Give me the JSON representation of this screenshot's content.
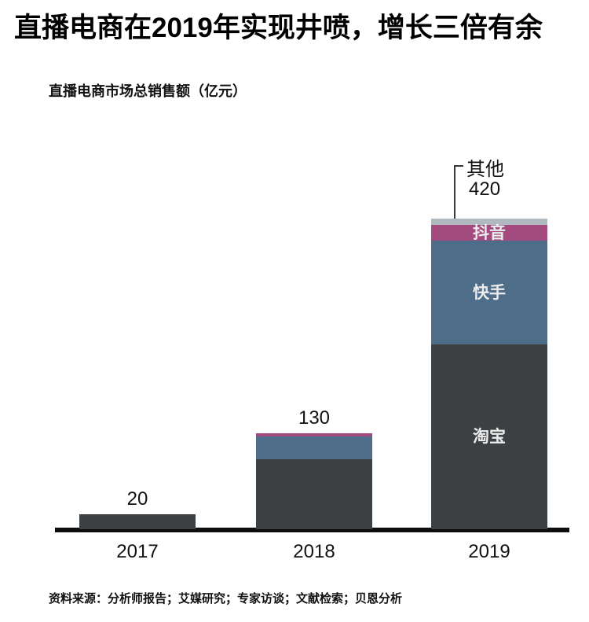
{
  "header": {
    "title": "直播电商在2019年实现井喷，增长三倍有余"
  },
  "footer": {
    "source": "资料来源：分析师报告；艾媒研究；专家访谈；文献检索；贝恩分析"
  },
  "colors": {
    "taobao": "#3d4043",
    "kuaishou": "#4d6d89",
    "douyin": "#a34b7e",
    "other": "#b0b8c0",
    "axis": "#0d0d0d",
    "in_bar_text": "#ececec",
    "text": "#111111"
  },
  "chart_data": {
    "type": "bar",
    "stacked": true,
    "title": "直播电商市场总销售额（亿元）",
    "categories": [
      "2017",
      "2018",
      "2019"
    ],
    "series": [
      {
        "name": "淘宝",
        "color_key": "taobao",
        "values": [
          20,
          95,
          250
        ],
        "in_bar_label_category": "2019"
      },
      {
        "name": "快手",
        "color_key": "kuaishou",
        "values": [
          0,
          30,
          140
        ],
        "in_bar_label_category": "2019"
      },
      {
        "name": "抖音",
        "color_key": "douyin",
        "values": [
          0,
          5,
          22
        ],
        "in_bar_label_category": "2019"
      },
      {
        "name": "其他",
        "color_key": "other",
        "values": [
          0,
          0,
          8
        ],
        "in_bar_label_category": null
      }
    ],
    "totals": [
      20,
      130,
      420
    ],
    "total_labels": [
      "20",
      "130",
      "420"
    ],
    "ylim": [
      0,
      440
    ],
    "grid": false,
    "legend": "none",
    "annotation": {
      "text": "其他",
      "category": "2019"
    }
  }
}
